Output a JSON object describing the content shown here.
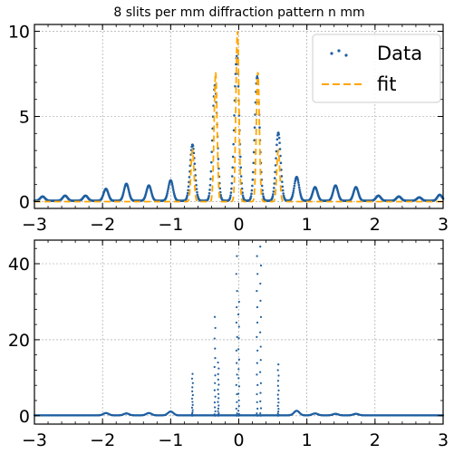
{
  "chart_data": [
    {
      "type": "scatter",
      "title": "8 slits per mm diffraction pattern n mm",
      "xlabel": "",
      "ylabel": "",
      "xlim": [
        -3,
        3
      ],
      "ylim": [
        -0.4,
        10.4
      ],
      "x_ticks": [
        -3,
        -2,
        -1,
        0,
        1,
        2,
        3
      ],
      "x_tick_labels": [
        "−3",
        "−2",
        "−1",
        "0",
        "1",
        "2",
        "3"
      ],
      "y_ticks": [
        0,
        5,
        10
      ],
      "y_tick_labels": [
        "0",
        "5",
        "10"
      ],
      "grid": true,
      "legend": {
        "placement": "top-right",
        "entries": [
          "Data",
          "fit"
        ]
      },
      "series": [
        {
          "name": "Data",
          "kind": "scatter",
          "color": "#1f5fa0",
          "peaks": [
            {
              "x": -2.88,
              "y": 0.25
            },
            {
              "x": -2.55,
              "y": 0.3
            },
            {
              "x": -2.25,
              "y": 0.3
            },
            {
              "x": -1.95,
              "y": 0.7
            },
            {
              "x": -1.65,
              "y": 1.0
            },
            {
              "x": -1.32,
              "y": 0.9
            },
            {
              "x": -1.0,
              "y": 1.2
            },
            {
              "x": -0.68,
              "y": 3.3
            },
            {
              "x": -0.35,
              "y": 6.8
            },
            {
              "x": -0.03,
              "y": 8.5
            },
            {
              "x": 0.27,
              "y": 7.3
            },
            {
              "x": 0.58,
              "y": 4.0
            },
            {
              "x": 0.85,
              "y": 1.4
            },
            {
              "x": 1.12,
              "y": 0.8
            },
            {
              "x": 1.42,
              "y": 0.9
            },
            {
              "x": 1.72,
              "y": 0.8
            },
            {
              "x": 2.05,
              "y": 0.3
            },
            {
              "x": 2.35,
              "y": 0.25
            },
            {
              "x": 2.65,
              "y": 0.2
            },
            {
              "x": 2.95,
              "y": 0.35
            }
          ],
          "baseline": 0.05
        },
        {
          "name": "fit",
          "kind": "line",
          "color": "#ffa500",
          "dashed": true,
          "peaks": [
            {
              "x": -0.68,
              "y": 3.0
            },
            {
              "x": -0.34,
              "y": 7.6
            },
            {
              "x": -0.02,
              "y": 10.0
            },
            {
              "x": 0.28,
              "y": 7.6
            },
            {
              "x": 0.58,
              "y": 3.0
            }
          ],
          "baseline": 0.0
        }
      ]
    },
    {
      "type": "scatter",
      "title": "",
      "xlabel": "",
      "ylabel": "",
      "xlim": [
        -3,
        3
      ],
      "ylim": [
        -2.2,
        46.2
      ],
      "x_ticks": [
        -3,
        -2,
        -1,
        0,
        1,
        2,
        3
      ],
      "x_tick_labels": [
        "−3",
        "−2",
        "−1",
        "0",
        "1",
        "2",
        "3"
      ],
      "y_ticks": [
        0,
        20,
        40
      ],
      "y_tick_labels": [
        "0",
        "20",
        "40"
      ],
      "grid": true,
      "series": [
        {
          "kind": "scatter",
          "color": "#1f5fa0",
          "baseline": 0.1,
          "bumps": [
            {
              "x": -1.95,
              "y": 0.6
            },
            {
              "x": -1.65,
              "y": 0.5
            },
            {
              "x": -1.32,
              "y": 0.6
            },
            {
              "x": -1.0,
              "y": 1.0
            },
            {
              "x": 0.85,
              "y": 1.2
            },
            {
              "x": 1.12,
              "y": 0.5
            },
            {
              "x": 1.42,
              "y": 0.4
            },
            {
              "x": 1.72,
              "y": 0.4
            }
          ],
          "spikes": [
            {
              "x": -0.68,
              "y": 11.0
            },
            {
              "x": -0.35,
              "y": 26.0
            },
            {
              "x": -0.3,
              "y": 14.0
            },
            {
              "x": -0.03,
              "y": 42.0
            },
            {
              "x": 0.0,
              "y": 30.0
            },
            {
              "x": 0.27,
              "y": 42.0
            },
            {
              "x": 0.32,
              "y": 44.5
            },
            {
              "x": 0.58,
              "y": 13.5
            }
          ]
        }
      ]
    }
  ]
}
